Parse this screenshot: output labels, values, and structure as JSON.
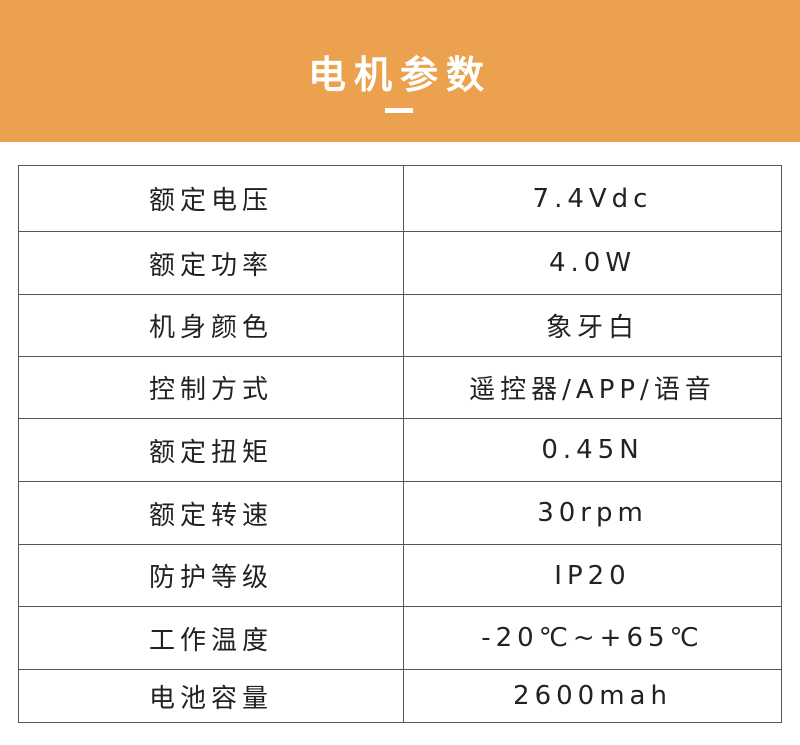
{
  "header": {
    "title": "电机参数",
    "background_color": "#eba14e"
  },
  "rows": [
    {
      "label": "额定电压",
      "value": "7.4Vdc"
    },
    {
      "label": "额定功率",
      "value": "4.0W"
    },
    {
      "label": "机身颜色",
      "value": "象牙白"
    },
    {
      "label": "控制方式",
      "value": "遥控器/APP/语音"
    },
    {
      "label": "额定扭矩",
      "value": "0.45N"
    },
    {
      "label": "额定转速",
      "value": "30rpm"
    },
    {
      "label": "防护等级",
      "value": "IP20"
    },
    {
      "label": "工作温度",
      "value": "-20℃~+65℃"
    },
    {
      "label": "电池容量",
      "value": "2600mah"
    }
  ]
}
